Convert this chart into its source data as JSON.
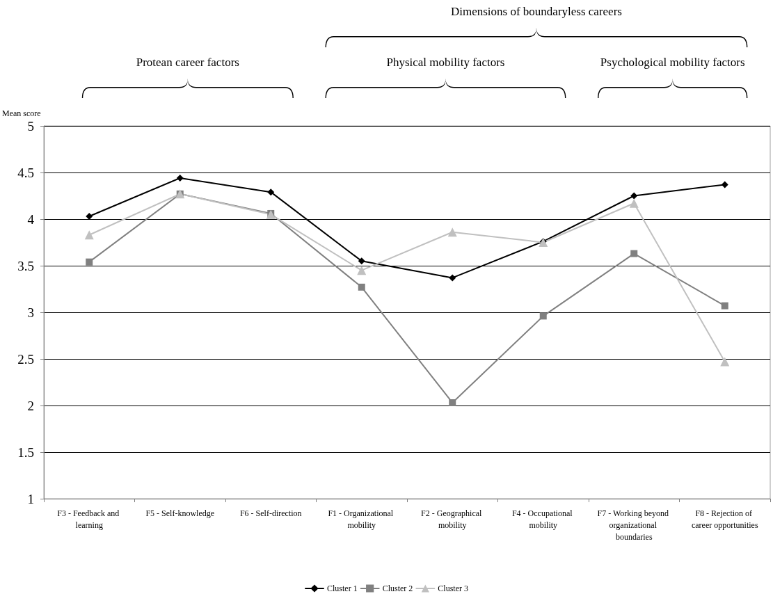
{
  "chart_data": {
    "type": "line",
    "annotations": [
      "Dimensions of boundaryless careers",
      "Protean career factors",
      "Physical mobility factors",
      "Psychological mobility factors"
    ],
    "ylabel": "Mean score",
    "categories": [
      "F3 - Feedback and learning",
      "F5 - Self-knowledge",
      "F6 - Self-direction",
      "F1 - Organizational mobility",
      "F2 - Geographical mobility",
      "F4 - Occupational mobility",
      "F7 - Working beyond organizational boundaries",
      "F8 - Rejection of career opportunities"
    ],
    "series": [
      {
        "name": "Cluster 1",
        "color": "#000000",
        "marker": "diamond",
        "values": [
          4.03,
          4.44,
          4.29,
          3.55,
          3.37,
          3.76,
          4.25,
          4.37
        ]
      },
      {
        "name": "Cluster 2",
        "color": "#808080",
        "marker": "square",
        "values": [
          3.54,
          4.27,
          4.06,
          3.27,
          2.03,
          2.96,
          3.63,
          3.07
        ]
      },
      {
        "name": "Cluster 3",
        "color": "#c0c0c0",
        "marker": "triangle",
        "values": [
          3.83,
          4.27,
          4.05,
          3.45,
          3.86,
          3.75,
          4.17,
          2.47
        ]
      }
    ],
    "ylim": [
      1,
      5
    ],
    "yticks": [
      1,
      1.5,
      2,
      2.5,
      3,
      3.5,
      4,
      4.5,
      5
    ],
    "grid": "y",
    "legend": "bottom",
    "line_style": "solid"
  }
}
